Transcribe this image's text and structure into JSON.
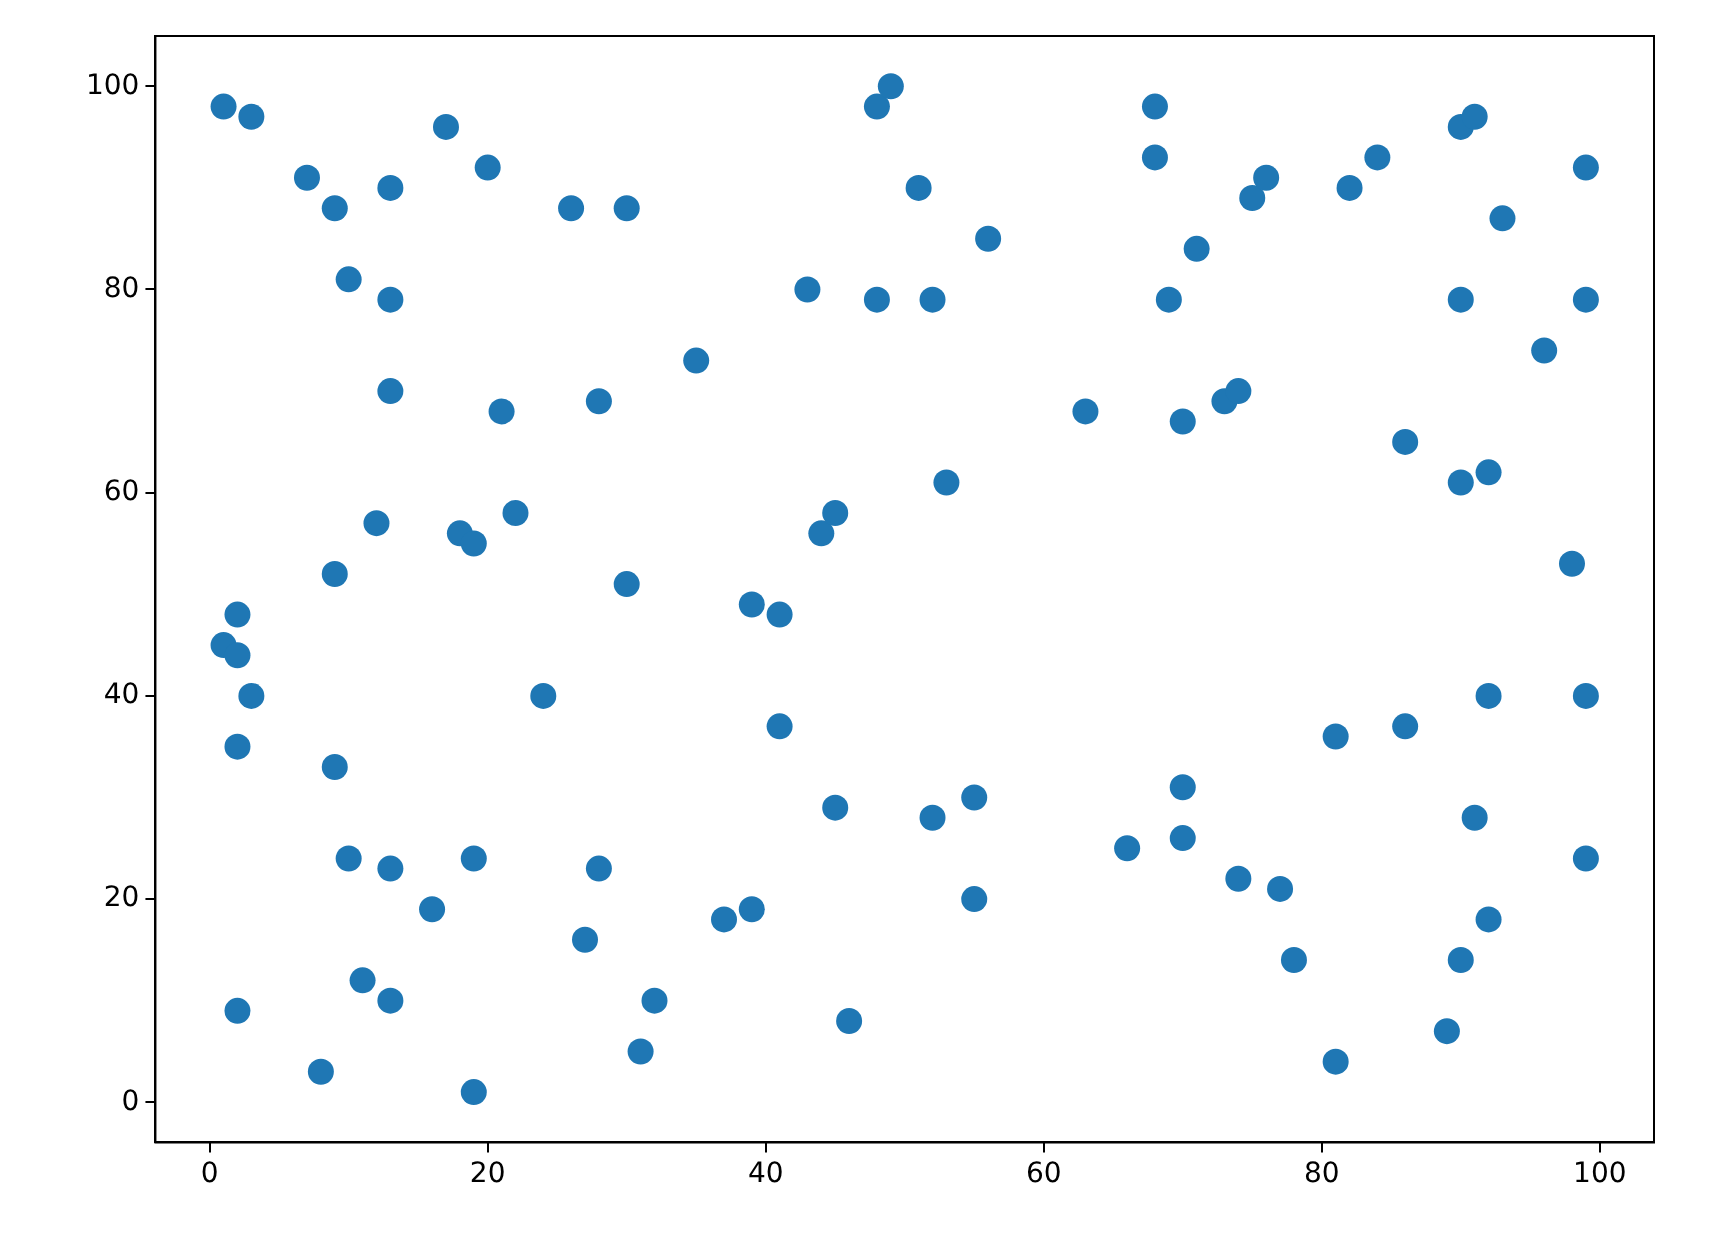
{
  "chart_data": {
    "type": "scatter",
    "color": "#1f77b4",
    "marker": "circle",
    "xlim": [
      -3.9,
      103.9
    ],
    "ylim": [
      -3.95,
      104.95
    ],
    "xticks": [
      0,
      20,
      40,
      60,
      80,
      100
    ],
    "yticks": [
      0,
      20,
      40,
      60,
      80,
      100
    ],
    "x": [
      1,
      3,
      7,
      9,
      13,
      17,
      20,
      26,
      30,
      10,
      13,
      13,
      21,
      28,
      35,
      43,
      48,
      49,
      51,
      48,
      52,
      56,
      53,
      44,
      45,
      12,
      18,
      19,
      22,
      9,
      30,
      39,
      41,
      2,
      1,
      2,
      3,
      24,
      41,
      2,
      9,
      10,
      13,
      19,
      28,
      16,
      27,
      11,
      13,
      2,
      8,
      19,
      32,
      31,
      37,
      39,
      45,
      46,
      52,
      55,
      55,
      63,
      66,
      68,
      68,
      69,
      71,
      70,
      73,
      74,
      75,
      76,
      70,
      70,
      74,
      77,
      78,
      82,
      84,
      81,
      86,
      86,
      81,
      90,
      91,
      93,
      90,
      90,
      92,
      92,
      91,
      92,
      90,
      89,
      96,
      98,
      99,
      99,
      99,
      99
    ],
    "values": [
      98,
      97,
      91,
      88,
      90,
      96,
      92,
      88,
      88,
      81,
      79,
      70,
      68,
      69,
      73,
      80,
      98,
      100,
      90,
      79,
      79,
      85,
      61,
      56,
      58,
      57,
      56,
      55,
      58,
      52,
      51,
      49,
      48,
      48,
      45,
      44,
      40,
      40,
      37,
      35,
      33,
      24,
      23,
      24,
      23,
      19,
      16,
      12,
      10,
      9,
      3,
      1,
      10,
      5,
      18,
      19,
      29,
      8,
      28,
      30,
      20,
      68,
      25,
      98,
      93,
      79,
      84,
      67,
      69,
      70,
      89,
      91,
      31,
      26,
      22,
      21,
      14,
      90,
      93,
      36,
      65,
      37,
      4,
      96,
      97,
      87,
      79,
      61,
      62,
      40,
      28,
      18,
      14,
      7,
      74,
      53,
      92,
      79,
      40,
      24
    ]
  }
}
